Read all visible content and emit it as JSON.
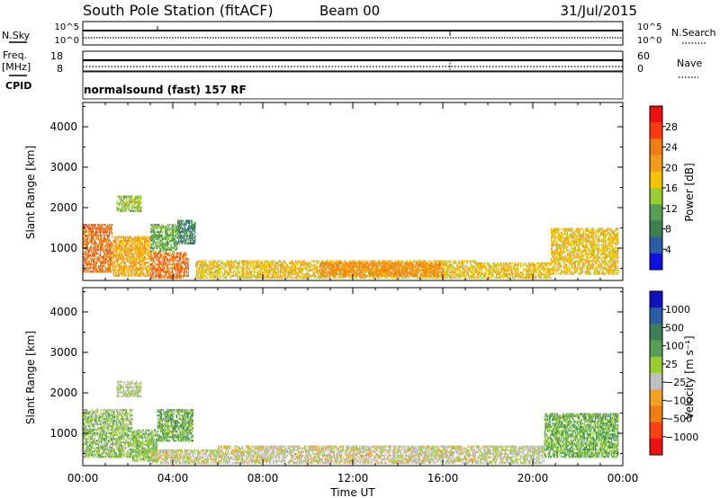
{
  "header": {
    "station": "South Pole Station (fitACF)",
    "beam": "Beam 00",
    "date": "31/Jul/2015"
  },
  "housekeeping": {
    "nsky_label": "N.Sky",
    "nsky_ticks": [
      "10^5",
      "10^0"
    ],
    "nsearch_label": "N.Search",
    "nsearch_ticks": [
      "10^5",
      "10^0"
    ],
    "freq_label": "Freq.",
    "freq_unit": "[MHz]",
    "freq_ticks": [
      "18",
      "8"
    ],
    "nave_label": "Nave",
    "nave_ticks": [
      "60",
      "0"
    ],
    "cpid_label": "CPID",
    "cpid_value": "normalsound (fast) 157 RF"
  },
  "colors": {
    "power": [
      "#1010e0",
      "#2a5fa8",
      "#3a8050",
      "#55a055",
      "#9acd32",
      "#f5c400",
      "#f39a1a",
      "#f07d10",
      "#ff3a10",
      "#ee1010"
    ],
    "velocity": [
      "#ee1010",
      "#ff4010",
      "#f07d10",
      "#f5a020",
      "#c0c0c0",
      "#9acd32",
      "#55a055",
      "#3a8050",
      "#2a5fa8",
      "#1010c0"
    ]
  },
  "chart_data": [
    {
      "type": "heatmap",
      "panel": "power",
      "ylabel": "Slant Range [km]",
      "yticks": [
        "4000",
        "3000",
        "2000",
        "1000"
      ],
      "ylim": [
        200,
        4600
      ],
      "colorbar_label": "Power [dB]",
      "colorbar_ticks": [
        "28",
        "24",
        "20",
        "16",
        "12",
        "8",
        "4"
      ],
      "colorbar_range": [
        0,
        32
      ],
      "regions": [
        {
          "t": [
            0.0,
            1.3
          ],
          "r": [
            400,
            1600
          ],
          "v": 24
        },
        {
          "t": [
            1.3,
            3.0
          ],
          "r": [
            300,
            1300
          ],
          "v": 20
        },
        {
          "t": [
            1.5,
            2.6
          ],
          "r": [
            1900,
            2300
          ],
          "v": 14
        },
        {
          "t": [
            3.0,
            4.2
          ],
          "r": [
            900,
            1600
          ],
          "v": 12
        },
        {
          "t": [
            4.2,
            5.0
          ],
          "r": [
            1100,
            1700
          ],
          "v": 8
        },
        {
          "t": [
            3.0,
            4.7
          ],
          "r": [
            250,
            900
          ],
          "v": 24
        },
        {
          "t": [
            5.0,
            17.5
          ],
          "r": [
            250,
            700
          ],
          "v": 18
        },
        {
          "t": [
            10.5,
            16.0
          ],
          "r": [
            300,
            650
          ],
          "v": 22
        },
        {
          "t": [
            17.5,
            20.8
          ],
          "r": [
            250,
            650
          ],
          "v": 18
        },
        {
          "t": [
            20.8,
            23.8
          ],
          "r": [
            350,
            1500
          ],
          "v": 18
        }
      ]
    },
    {
      "type": "heatmap",
      "panel": "velocity",
      "ylabel": "Slant Range [km]",
      "yticks": [
        "4000",
        "3000",
        "2000",
        "1000"
      ],
      "ylim": [
        200,
        4600
      ],
      "xlabel": "Time UT",
      "xticks": [
        "00:00",
        "04:00",
        "08:00",
        "12:00",
        "16:00",
        "20:00",
        "00:00"
      ],
      "xlim": [
        0,
        24
      ],
      "colorbar_label": "Velocity [m s⁻¹]",
      "colorbar_ticks": [
        "1000",
        "500",
        "100",
        "25",
        "−25",
        "−100",
        "−500",
        "−1000"
      ],
      "colorbar_range": [
        -1200,
        1200
      ],
      "regions": [
        {
          "t": [
            0.0,
            2.2
          ],
          "r": [
            400,
            1600
          ],
          "v": 150
        },
        {
          "t": [
            2.2,
            3.3
          ],
          "r": [
            300,
            1100
          ],
          "v": 200
        },
        {
          "t": [
            1.5,
            2.6
          ],
          "r": [
            1900,
            2300
          ],
          "v": 10
        },
        {
          "t": [
            3.3,
            4.9
          ],
          "r": [
            800,
            1600
          ],
          "v": 300
        },
        {
          "t": [
            3.0,
            6.0
          ],
          "r": [
            250,
            600
          ],
          "v": -80
        },
        {
          "t": [
            6.0,
            17.5
          ],
          "r": [
            250,
            700
          ],
          "v": -120
        },
        {
          "t": [
            17.5,
            20.5
          ],
          "r": [
            250,
            700
          ],
          "v": -60
        },
        {
          "t": [
            20.5,
            23.8
          ],
          "r": [
            400,
            1500
          ],
          "v": 300
        }
      ]
    }
  ]
}
